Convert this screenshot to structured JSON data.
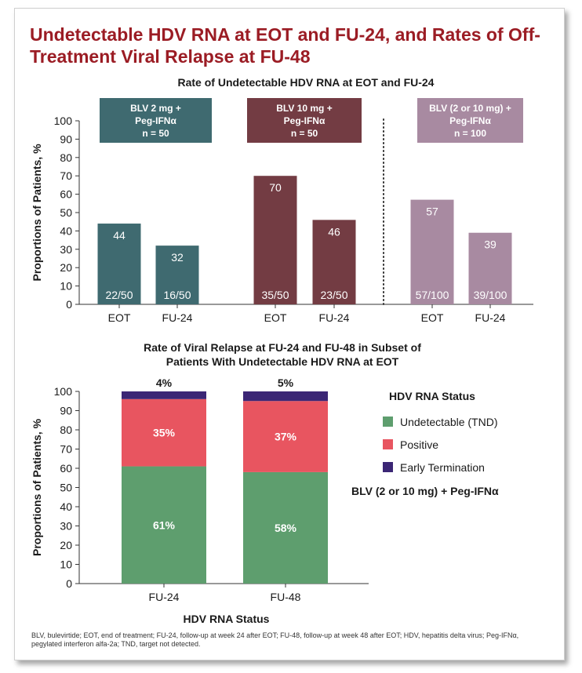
{
  "title": "Undetectable HDV RNA at EOT and FU-24, and Rates of Off-Treatment Viral Relapse at FU-48",
  "colors": {
    "title": "#9b1c24",
    "blv2": "#3f6a70",
    "blv10": "#733c43",
    "blvall": "#a88aa1",
    "undetectable": "#5e9e6e",
    "positive": "#e85560",
    "early_termination": "#3b2675"
  },
  "chart_data": [
    {
      "type": "bar",
      "title": "Rate of Undetectable HDV RNA at EOT and FU-24",
      "ylabel": "Proportions of Patients, %",
      "ylim": [
        0,
        100
      ],
      "yticks": [
        0,
        10,
        20,
        30,
        40,
        50,
        60,
        70,
        80,
        90,
        100
      ],
      "groups": [
        {
          "label_lines": [
            "BLV 2 mg +",
            "Peg-IFNα",
            "n = 50"
          ],
          "color_key": "blv2",
          "bars": [
            {
              "x": "EOT",
              "value": 44,
              "value_label": "44",
              "count_label": "22/50"
            },
            {
              "x": "FU-24",
              "value": 32,
              "value_label": "32",
              "count_label": "16/50"
            }
          ]
        },
        {
          "label_lines": [
            "BLV 10 mg +",
            "Peg-IFNα",
            "n = 50"
          ],
          "color_key": "blv10",
          "bars": [
            {
              "x": "EOT",
              "value": 70,
              "value_label": "70",
              "count_label": "35/50"
            },
            {
              "x": "FU-24",
              "value": 46,
              "value_label": "46",
              "count_label": "23/50"
            }
          ]
        },
        {
          "label_lines": [
            "BLV (2 or 10 mg) +",
            "Peg-IFNα",
            "n = 100"
          ],
          "color_key": "blvall",
          "bars": [
            {
              "x": "EOT",
              "value": 57,
              "value_label": "57",
              "count_label": "57/100"
            },
            {
              "x": "FU-24",
              "value": 39,
              "value_label": "39",
              "count_label": "39/100"
            }
          ]
        }
      ]
    },
    {
      "type": "bar",
      "stacked": true,
      "title": "Rate of Viral Relapse at FU-24 and FU-48 in Subset of Patients With Undetectable HDV RNA at EOT",
      "title_lines": [
        "Rate of Viral Relapse at FU-24 and FU-48 in Subset of",
        "Patients With Undetectable HDV RNA at EOT"
      ],
      "ylabel": "Proportions of Patients, %",
      "xlabel": "HDV RNA Status",
      "ylim": [
        0,
        100
      ],
      "yticks": [
        0,
        10,
        20,
        30,
        40,
        50,
        60,
        70,
        80,
        90,
        100
      ],
      "categories": [
        "FU-24",
        "FU-48"
      ],
      "series": [
        {
          "name": "Undetectable (TND)",
          "color_key": "undetectable",
          "values": [
            61,
            58
          ],
          "labels": [
            "61%",
            "58%"
          ]
        },
        {
          "name": "Positive",
          "color_key": "positive",
          "values": [
            35,
            37
          ],
          "labels": [
            "35%",
            "37%"
          ]
        },
        {
          "name": "Early Termination",
          "color_key": "early_termination",
          "values": [
            4,
            5
          ],
          "labels": [
            "4%",
            "5%"
          ]
        }
      ],
      "legend_title": "HDV RNA Status",
      "legend_position": "right",
      "note": "BLV (2 or 10 mg) + Peg-IFNα"
    }
  ],
  "footnote": "BLV, bulevirtide; EOT, end of treatment; FU-24, follow-up at week 24 after EOT; FU-48, follow-up at week 48 after EOT; HDV, hepatitis delta virus; Peg-IFNα, pegylated interferon alfa-2a; TND, target not detected."
}
